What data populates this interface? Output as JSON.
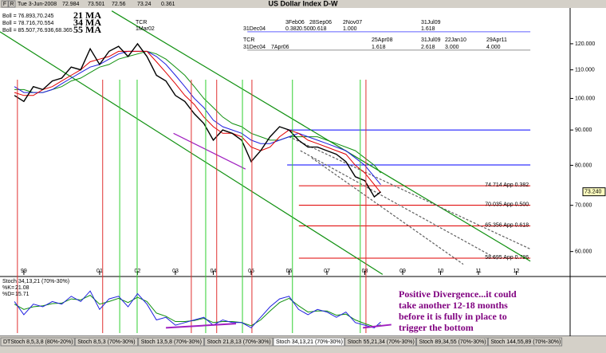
{
  "header": {
    "buttons": [
      "F",
      "R"
    ],
    "date": "Tue 3-Jun-2008",
    "open": 72.984,
    "high": 73.501,
    "low": 72.56,
    "close": 73.24,
    "change": 0.361
  },
  "chart_data": [
    {
      "type": "line",
      "title": "US Dollar Index  D-W",
      "log": true,
      "xlim": [
        1998.37,
        2013.42
      ],
      "ylim": [
        55.5,
        134.5
      ],
      "xticks": [
        {
          "value": 1999,
          "label": "99"
        },
        {
          "value": 2001,
          "label": "01"
        },
        {
          "value": 2002,
          "label": "02"
        },
        {
          "value": 2003,
          "label": "03"
        },
        {
          "value": 2004,
          "label": "04"
        },
        {
          "value": 2005,
          "label": "05"
        },
        {
          "value": 2006,
          "label": "06"
        },
        {
          "value": 2007,
          "label": "07"
        },
        {
          "value": 2008,
          "label": "08"
        },
        {
          "value": 2009,
          "label": "09"
        },
        {
          "value": 2010,
          "label": "10"
        },
        {
          "value": 2011,
          "label": "11"
        },
        {
          "value": 2012,
          "label": "12"
        }
      ],
      "yticks": [
        {
          "value": 60,
          "label": "60.000"
        },
        {
          "value": 70,
          "label": "70.000"
        },
        {
          "value": 80,
          "label": "80.000"
        },
        {
          "value": 90,
          "label": "90.000"
        },
        {
          "value": 100,
          "label": "100.000"
        },
        {
          "value": 110,
          "label": "110.000"
        },
        {
          "value": 120,
          "label": "120.000"
        }
      ],
      "x": [
        1998.75,
        1999,
        1999.25,
        1999.5,
        1999.75,
        2000,
        2000.25,
        2000.5,
        2000.75,
        2001,
        2001.25,
        2001.5,
        2001.75,
        2002,
        2002.25,
        2002.5,
        2002.75,
        2003,
        2003.25,
        2003.5,
        2003.75,
        2004,
        2004.25,
        2004.5,
        2004.75,
        2005,
        2005.25,
        2005.5,
        2005.75,
        2006,
        2006.25,
        2006.5,
        2006.75,
        2007,
        2007.25,
        2007.5,
        2007.75,
        2008,
        2008.25,
        2008.42
      ],
      "series": [
        {
          "color": "#000000",
          "values": [
            101,
            99,
            104,
            103,
            106,
            107,
            111,
            110,
            118,
            112,
            117,
            119,
            115,
            120,
            115,
            108,
            106,
            101,
            99,
            95,
            92,
            87,
            90,
            89,
            87,
            81,
            84,
            88,
            91,
            90,
            87,
            85,
            85,
            84,
            83,
            81,
            77,
            76,
            72,
            73.24
          ]
        },
        {
          "name": "21 MA",
          "label": "Boll = 76.893,70.245",
          "color": "#e00000",
          "values": [
            102,
            101,
            101,
            103,
            104,
            106,
            108,
            110,
            113,
            114,
            115,
            117,
            117,
            117,
            117,
            113,
            109,
            105,
            101,
            98,
            94,
            91,
            89,
            89,
            88,
            85,
            84,
            85,
            88,
            90,
            89,
            87,
            86,
            85,
            84,
            83,
            80,
            78,
            75,
            73
          ]
        },
        {
          "name": "34 MA",
          "label": "Boll = 78.716,70.554",
          "color": "#2020e0",
          "values": [
            104,
            102,
            102,
            102,
            103,
            105,
            107,
            109,
            111,
            112,
            114,
            116,
            117,
            117,
            117,
            115,
            112,
            108,
            104,
            100,
            97,
            93,
            91,
            90,
            89,
            87,
            86,
            86,
            87,
            88,
            89,
            88,
            87,
            86,
            85,
            84,
            82,
            80,
            77,
            75
          ]
        },
        {
          "name": "55 MA",
          "label": "Boll = 85.507,76.936,68.365",
          "color": "#109010",
          "values": [
            103,
            103,
            102,
            102,
            103,
            104,
            106,
            107,
            109,
            111,
            112,
            114,
            115,
            116,
            117,
            116,
            114,
            111,
            108,
            104,
            100,
            97,
            94,
            92,
            91,
            89,
            88,
            87,
            87,
            88,
            88,
            88,
            88,
            87,
            86,
            85,
            84,
            82,
            80,
            78
          ]
        }
      ],
      "last_value": {
        "value": 73.24,
        "label": "73.240"
      },
      "fib_levels": {
        "color": "#e00000",
        "from": 2006.26,
        "to": 2012.37,
        "levels": [
          {
            "value": 74.714,
            "label": "74.714 App 0.382"
          },
          {
            "value": 70.035,
            "label": "70.035 App 0.500"
          },
          {
            "value": 65.356,
            "label": "65.356 App 0.618"
          },
          {
            "value": 58.695,
            "label": "58.695 App 0.786"
          }
        ]
      },
      "hlines": [
        {
          "value": 90,
          "from": 2005.95,
          "to": 2012.37,
          "color": "#0000ff"
        },
        {
          "value": 80.1,
          "from": 2005.95,
          "to": 2012.37,
          "color": "#0000ff"
        },
        {
          "value": 124.9,
          "from": 2004.9,
          "to": 2012.37,
          "color": "#6060ff"
        },
        {
          "value": 117.5,
          "from": 2004.9,
          "to": 2012.37,
          "color": "#909090"
        }
      ],
      "vlines": {
        "red": [
          1998.83,
          2001.08,
          2003.42,
          2004.09,
          2005.02,
          2008.03
        ],
        "green": [
          2001.53,
          2001.99,
          2003.8,
          2004.77,
          2006.09,
          2007.88
        ],
        "red_color": "#e03030",
        "green_color": "#30d030"
      },
      "trendlines": [
        {
          "color": "#109010",
          "dash": false,
          "points": [
            [
              1998.37,
              124.9
            ],
            [
              2008.47,
              55.6
            ]
          ]
        },
        {
          "color": "#109010",
          "dash": false,
          "points": [
            [
              2001.32,
              133.9
            ],
            [
              2012.37,
              58.1
            ]
          ]
        },
        {
          "color": "#606060",
          "dash": true,
          "points": [
            [
              2006.0,
              88
            ],
            [
              2012.37,
              60.5
            ]
          ]
        },
        {
          "color": "#606060",
          "dash": true,
          "points": [
            [
              2006.3,
              84
            ],
            [
              2011.5,
              58.5
            ]
          ]
        },
        {
          "color": "#606060",
          "dash": true,
          "points": [
            [
              2006.6,
              82
            ],
            [
              2010.6,
              57.5
            ]
          ]
        },
        {
          "color": "#a020c0",
          "dash": false,
          "points": [
            [
              2002.95,
              89
            ],
            [
              2004.85,
              79
            ]
          ]
        }
      ],
      "time_labels": {
        "group1": [
          "TCR",
          "1Mar02",
          "31Dec04",
          "3Feb06",
          "28Sep06",
          "2Nov07",
          "31Jul09",
          "0.382",
          "0.500",
          "0.618",
          "1.000",
          "1.618"
        ],
        "group2": [
          "TCR",
          "31Dec04",
          "7Apr06",
          "25Apr08",
          "31Jul09",
          "22Jan10",
          "29Apr11",
          "1.618",
          "2.618",
          "3.000",
          "4.000"
        ]
      }
    },
    {
      "type": "line",
      "title": "Stoch 34,13,21 (70%-30%)",
      "ylim": [
        0,
        100
      ],
      "xlim": [
        1998.37,
        2013.42
      ],
      "x": [
        1998.75,
        1999,
        1999.25,
        1999.5,
        1999.75,
        2000,
        2000.25,
        2000.5,
        2000.75,
        2001,
        2001.25,
        2001.5,
        2001.75,
        2002,
        2002.25,
        2002.5,
        2002.75,
        2003,
        2003.25,
        2003.5,
        2003.75,
        2004,
        2004.25,
        2004.5,
        2004.75,
        2005,
        2005.25,
        2005.5,
        2005.75,
        2006,
        2006.25,
        2006.5,
        2006.75,
        2007,
        2007.25,
        2007.5,
        2007.75,
        2008,
        2008.25,
        2008.42
      ],
      "series": [
        {
          "name": "%K",
          "color": "#2020e0",
          "values": [
            60,
            35,
            55,
            50,
            60,
            55,
            70,
            60,
            80,
            45,
            65,
            70,
            50,
            75,
            55,
            25,
            30,
            15,
            20,
            25,
            30,
            15,
            25,
            20,
            20,
            10,
            30,
            50,
            65,
            70,
            45,
            35,
            45,
            40,
            30,
            40,
            20,
            15,
            10,
            21.08
          ]
        },
        {
          "name": "%D",
          "color": "#109010",
          "values": [
            55,
            45,
            50,
            52,
            56,
            57,
            65,
            63,
            72,
            55,
            60,
            66,
            58,
            68,
            60,
            38,
            32,
            22,
            22,
            24,
            28,
            20,
            22,
            22,
            20,
            14,
            25,
            42,
            58,
            66,
            52,
            40,
            42,
            42,
            34,
            36,
            25,
            18,
            12,
            15.71
          ]
        }
      ],
      "trendlines": [
        {
          "color": "#a020c0",
          "points": [
            [
              2002.75,
              10
            ],
            [
              2004.6,
              18
            ]
          ]
        },
        {
          "color": "#a020c0",
          "points": [
            [
              2007.95,
              10
            ],
            [
              2008.7,
              16
            ]
          ]
        }
      ],
      "annotation": [
        "Positive Divergence...it could",
        "take another 12-18 months",
        "before it is fully in place to",
        "trigger the bottom"
      ]
    }
  ],
  "tabs": [
    "DTStoch 8,5,3,8 (80%-20%)",
    "Stoch 8,5,3 (70%-30%)",
    "Stoch 13,5,8 (70%-30%)",
    "Stoch 21,8,13 (70%-30%)",
    "Stoch 34,13,21 (70%-30%)",
    "Stoch 55,21,34 (70%-30%)",
    "Stoch 89,34,55 (70%-30%)",
    "Stoch 144,55,89 (70%-30%)"
  ]
}
